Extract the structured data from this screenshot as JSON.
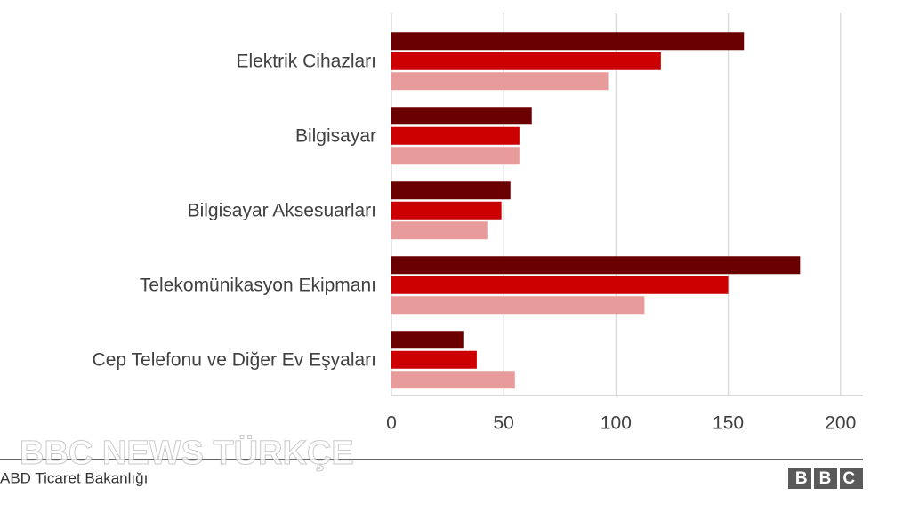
{
  "chart_data": {
    "type": "bar",
    "orientation": "horizontal",
    "categories": [
      "Elektrik Cihazları",
      "Bilgisayar",
      "Bilgisayar Aksesuarları",
      "Telekomünikasyon Ekipmanı",
      "Cep Telefonu ve Diğer Ev Eşyaları"
    ],
    "series": [
      {
        "color": "#6b0000",
        "values": [
          157,
          62.5,
          53,
          182,
          32
        ]
      },
      {
        "color": "#cc0000",
        "values": [
          120,
          57,
          49,
          150,
          38
        ]
      },
      {
        "color": "#e89b9b",
        "values": [
          96.5,
          57,
          42.7,
          112.7,
          55
        ]
      }
    ],
    "xlim": [
      0,
      210
    ],
    "xticks": [
      0,
      50,
      100,
      150,
      200
    ],
    "grid": true,
    "source": "ABD Ticaret Bakanlığı",
    "watermark": "BBC NEWS TÜRKÇE",
    "logo": "BBC"
  }
}
